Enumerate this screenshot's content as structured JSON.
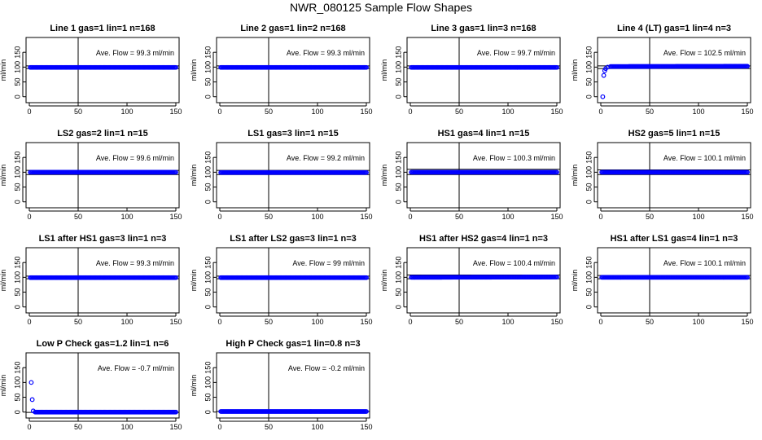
{
  "figure": {
    "title": "NWR_080125  Sample Flow Shapes",
    "point_color": "#0000ff"
  },
  "chart_data": [
    {
      "type": "scatter",
      "title": "Line 1 gas=1 lin=1 n=168",
      "annotation": "Ave. Flow =  99.3  ml/min",
      "ylabel": "ml/min",
      "xlim": [
        0,
        150
      ],
      "ylim": [
        -20,
        200
      ],
      "xticks": [
        0,
        50,
        100,
        150
      ],
      "yticks": [
        0,
        50,
        100,
        150
      ],
      "vline_x": 50,
      "hlines": [
        95,
        104
      ],
      "points": [
        {
          "x": 1,
          "y": 99
        },
        {
          "x": 150,
          "y": 99
        }
      ]
    },
    {
      "type": "scatter",
      "title": "Line 2 gas=1 lin=2 n=168",
      "annotation": "Ave. Flow =  99.3  ml/min",
      "ylabel": "ml/min",
      "xlim": [
        0,
        150
      ],
      "ylim": [
        -20,
        200
      ],
      "xticks": [
        0,
        50,
        100,
        150
      ],
      "yticks": [
        0,
        50,
        100,
        150
      ],
      "vline_x": 50,
      "hlines": [
        95,
        104
      ],
      "points": [
        {
          "x": 1,
          "y": 99
        },
        {
          "x": 150,
          "y": 99
        }
      ]
    },
    {
      "type": "scatter",
      "title": "Line 3 gas=1 lin=3 n=168",
      "annotation": "Ave. Flow =  99.7  ml/min",
      "ylabel": "ml/min",
      "xlim": [
        0,
        150
      ],
      "ylim": [
        -20,
        200
      ],
      "xticks": [
        0,
        50,
        100,
        150
      ],
      "yticks": [
        0,
        50,
        100,
        150
      ],
      "vline_x": 50,
      "hlines": [
        95,
        104
      ],
      "points": [
        {
          "x": 1,
          "y": 99
        },
        {
          "x": 150,
          "y": 99
        }
      ]
    },
    {
      "type": "scatter",
      "title": "Line 4 (LT) gas=1 lin=4 n=3",
      "annotation": "Ave. Flow =  102.5  ml/min",
      "ylabel": "ml/min",
      "xlim": [
        0,
        150
      ],
      "ylim": [
        -20,
        200
      ],
      "xticks": [
        0,
        50,
        100,
        150
      ],
      "yticks": [
        0,
        50,
        100,
        150
      ],
      "vline_x": 50,
      "hlines": [
        95,
        104
      ],
      "points": [
        {
          "x": 2,
          "y": 0
        },
        {
          "x": 3,
          "y": 72
        },
        {
          "x": 4,
          "y": 88
        },
        {
          "x": 5,
          "y": 95
        },
        {
          "x": 7,
          "y": 100
        },
        {
          "x": 10,
          "y": 102
        },
        {
          "x": 150,
          "y": 103
        }
      ]
    },
    {
      "type": "scatter",
      "title": "LS2 gas=2 lin=1 n=15",
      "annotation": "Ave. Flow =  99.6  ml/min",
      "ylabel": "ml/min",
      "xlim": [
        0,
        150
      ],
      "ylim": [
        -20,
        200
      ],
      "xticks": [
        0,
        50,
        100,
        150
      ],
      "yticks": [
        0,
        50,
        100,
        150
      ],
      "vline_x": 50,
      "hlines": [
        92,
        106
      ],
      "points": [
        {
          "x": 1,
          "y": 100
        },
        {
          "x": 150,
          "y": 100
        }
      ]
    },
    {
      "type": "scatter",
      "title": "LS1 gas=3 lin=1 n=15",
      "annotation": "Ave. Flow =  99.2  ml/min",
      "ylabel": "ml/min",
      "xlim": [
        0,
        150
      ],
      "ylim": [
        -20,
        200
      ],
      "xticks": [
        0,
        50,
        100,
        150
      ],
      "yticks": [
        0,
        50,
        100,
        150
      ],
      "vline_x": 50,
      "hlines": [
        92,
        106
      ],
      "points": [
        {
          "x": 1,
          "y": 99
        },
        {
          "x": 150,
          "y": 99
        }
      ]
    },
    {
      "type": "scatter",
      "title": "HS1 gas=4 lin=1 n=15",
      "annotation": "Ave. Flow =  100.3  ml/min",
      "ylabel": "ml/min",
      "xlim": [
        0,
        150
      ],
      "ylim": [
        -20,
        200
      ],
      "xticks": [
        0,
        50,
        100,
        150
      ],
      "yticks": [
        0,
        50,
        100,
        150
      ],
      "vline_x": 50,
      "hlines": [
        92,
        110
      ],
      "points": [
        {
          "x": 1,
          "y": 100
        },
        {
          "x": 150,
          "y": 100
        }
      ]
    },
    {
      "type": "scatter",
      "title": "HS2 gas=5 lin=1 n=15",
      "annotation": "Ave. Flow =  100.1  ml/min",
      "ylabel": "ml/min",
      "xlim": [
        0,
        150
      ],
      "ylim": [
        -20,
        200
      ],
      "xticks": [
        0,
        50,
        100,
        150
      ],
      "yticks": [
        0,
        50,
        100,
        150
      ],
      "vline_x": 50,
      "hlines": [
        92,
        108
      ],
      "points": [
        {
          "x": 1,
          "y": 100
        },
        {
          "x": 150,
          "y": 100
        }
      ]
    },
    {
      "type": "scatter",
      "title": "LS1 after HS1 gas=3 lin=1 n=3",
      "annotation": "Ave. Flow =  99.3  ml/min",
      "ylabel": "ml/min",
      "xlim": [
        0,
        150
      ],
      "ylim": [
        -20,
        200
      ],
      "xticks": [
        0,
        50,
        100,
        150
      ],
      "yticks": [
        0,
        50,
        100,
        150
      ],
      "vline_x": 50,
      "hlines": [
        95,
        104
      ],
      "points": [
        {
          "x": 1,
          "y": 99
        },
        {
          "x": 150,
          "y": 99
        }
      ]
    },
    {
      "type": "scatter",
      "title": "LS1 after LS2 gas=3 lin=1 n=3",
      "annotation": "Ave. Flow =  99  ml/min",
      "ylabel": "ml/min",
      "xlim": [
        0,
        150
      ],
      "ylim": [
        -20,
        200
      ],
      "xticks": [
        0,
        50,
        100,
        150
      ],
      "yticks": [
        0,
        50,
        100,
        150
      ],
      "vline_x": 50,
      "hlines": [
        95,
        104
      ],
      "points": [
        {
          "x": 1,
          "y": 99
        },
        {
          "x": 150,
          "y": 99
        }
      ]
    },
    {
      "type": "scatter",
      "title": "HS1 after HS2 gas=4 lin=1 n=3",
      "annotation": "Ave. Flow =  100.4  ml/min",
      "ylabel": "ml/min",
      "xlim": [
        0,
        150
      ],
      "ylim": [
        -20,
        200
      ],
      "xticks": [
        0,
        50,
        100,
        150
      ],
      "yticks": [
        0,
        50,
        100,
        150
      ],
      "vline_x": 50,
      "hlines": [
        95,
        108
      ],
      "points": [
        {
          "x": 1,
          "y": 100
        },
        {
          "x": 150,
          "y": 101
        }
      ]
    },
    {
      "type": "scatter",
      "title": "HS1 after LS1 gas=4 lin=1 n=3",
      "annotation": "Ave. Flow =  100.1  ml/min",
      "ylabel": "ml/min",
      "xlim": [
        0,
        150
      ],
      "ylim": [
        -20,
        200
      ],
      "xticks": [
        0,
        50,
        100,
        150
      ],
      "yticks": [
        0,
        50,
        100,
        150
      ],
      "vline_x": 50,
      "hlines": [
        95,
        106
      ],
      "points": [
        {
          "x": 1,
          "y": 100
        },
        {
          "x": 150,
          "y": 100
        }
      ]
    },
    {
      "type": "scatter",
      "title": "Low P Check gas=1.2 lin=1 n=6",
      "annotation": "Ave. Flow =  -0.7  ml/min",
      "ylabel": "ml/min",
      "xlim": [
        0,
        150
      ],
      "ylim": [
        -20,
        200
      ],
      "xticks": [
        0,
        50,
        100,
        150
      ],
      "yticks": [
        0,
        50,
        100,
        150
      ],
      "vline_x": 50,
      "hlines": [
        -1
      ],
      "points": [
        {
          "x": 2,
          "y": 100
        },
        {
          "x": 3,
          "y": 42
        },
        {
          "x": 4,
          "y": 4
        },
        {
          "x": 6,
          "y": 0
        },
        {
          "x": 150,
          "y": 0
        }
      ]
    },
    {
      "type": "scatter",
      "title": "High P Check gas=1 lin=0.8 n=3",
      "annotation": "Ave. Flow =  -0.2  ml/min",
      "ylabel": "ml/min",
      "xlim": [
        0,
        150
      ],
      "ylim": [
        -20,
        200
      ],
      "xticks": [
        0,
        50,
        100,
        150
      ],
      "yticks": [
        0,
        50,
        100,
        150
      ],
      "vline_x": 50,
      "hlines": [
        2
      ],
      "points": [
        {
          "x": 1,
          "y": 2
        },
        {
          "x": 150,
          "y": 2
        }
      ]
    }
  ]
}
